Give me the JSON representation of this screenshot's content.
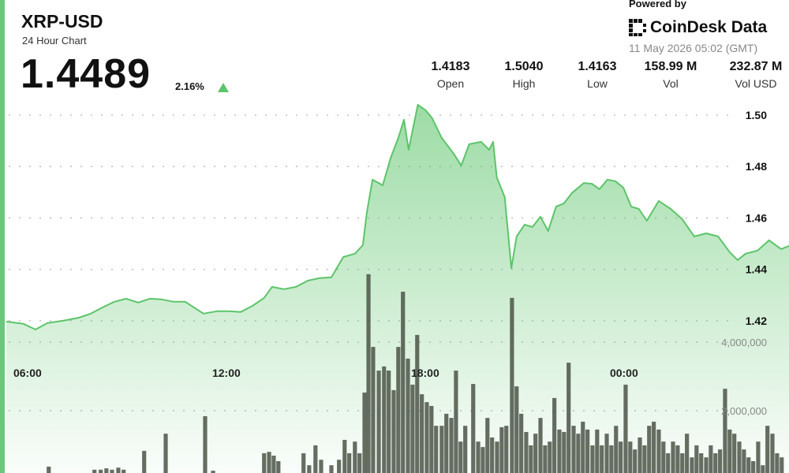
{
  "header": {
    "symbol": "XRP-USD",
    "subtitle": "24 Hour Chart",
    "price": "1.4489",
    "change": "2.16%",
    "powered_by": "Powered by",
    "brand": "CoinDesk Data",
    "timestamp": "11 May 2026 05:02 (GMT)",
    "stats": [
      {
        "value": "1.4183",
        "label": "Open"
      },
      {
        "value": "1.5040",
        "label": "High"
      },
      {
        "value": "1.4163",
        "label": "Low"
      },
      {
        "value": "158.99 M",
        "label": "Vol"
      },
      {
        "value": "232.87 M",
        "label": "Vol USD"
      }
    ]
  },
  "chart_data": [
    {
      "type": "area",
      "color": "#5cc46a",
      "grid": true,
      "xlim": [
        5.36,
        28.98
      ],
      "xticks": [
        {
          "value": 6,
          "label": "06:00"
        },
        {
          "value": 12,
          "label": "12:00"
        },
        {
          "value": 18,
          "label": "18:00"
        },
        {
          "value": 24,
          "label": "00:00"
        }
      ],
      "ylim": [
        1.3608,
        1.5141
      ],
      "yticks": [
        1.42,
        1.44,
        1.46,
        1.48,
        {
          "value": 1.5,
          "label": "1.50"
        }
      ],
      "x": [
        5.36,
        5.88,
        6.24,
        6.6,
        7.07,
        7.55,
        7.91,
        8.26,
        8.62,
        8.98,
        9.34,
        9.69,
        10.05,
        10.41,
        10.76,
        11.31,
        11.72,
        12.07,
        12.43,
        12.79,
        13.14,
        13.38,
        13.74,
        14.1,
        14.46,
        14.81,
        15.17,
        15.53,
        15.88,
        16.12,
        16.24,
        16.41,
        16.72,
        16.96,
        17.19,
        17.36,
        17.5,
        17.78,
        18.02,
        18.21,
        18.5,
        18.86,
        19.09,
        19.33,
        19.69,
        19.93,
        20.05,
        20.16,
        20.4,
        20.6,
        20.76,
        21.0,
        21.24,
        21.48,
        21.71,
        21.95,
        22.19,
        22.43,
        22.79,
        23.03,
        23.26,
        23.5,
        23.74,
        23.98,
        24.22,
        24.45,
        24.69,
        25.05,
        25.41,
        25.76,
        26.12,
        26.48,
        26.84,
        27.19,
        27.43,
        27.67,
        28.03,
        28.38,
        28.74,
        28.98
      ],
      "values": [
        1.4197,
        1.4188,
        1.4166,
        1.4191,
        1.42,
        1.4212,
        1.4228,
        1.4252,
        1.4274,
        1.4286,
        1.4271,
        1.4286,
        1.4283,
        1.4274,
        1.4274,
        1.4228,
        1.4237,
        1.4237,
        1.4234,
        1.4258,
        1.4289,
        1.4332,
        1.4323,
        1.4332,
        1.4356,
        1.4366,
        1.4369,
        1.4448,
        1.4461,
        1.4494,
        1.462,
        1.4749,
        1.4727,
        1.4834,
        1.4911,
        1.4982,
        1.4865,
        1.504,
        1.5018,
        1.4988,
        1.4911,
        1.485,
        1.4804,
        1.4887,
        1.4896,
        1.4865,
        1.4896,
        1.4758,
        1.4681,
        1.4405,
        1.4528,
        1.4574,
        1.4565,
        1.4605,
        1.4549,
        1.4644,
        1.4657,
        1.4697,
        1.4736,
        1.4733,
        1.4712,
        1.4749,
        1.4743,
        1.4718,
        1.4644,
        1.4635,
        1.4589,
        1.4666,
        1.4635,
        1.4595,
        1.4528,
        1.454,
        1.4528,
        1.4467,
        1.4436,
        1.4461,
        1.4473,
        1.4513,
        1.4479,
        1.4491
      ]
    },
    {
      "type": "bar",
      "color": "#4b5446",
      "grid": true,
      "xlim": [
        5.36,
        28.98
      ],
      "ylim": [
        0,
        6160000
      ],
      "yticks": [
        {
          "value": 2000000,
          "label": "2,000,000"
        },
        {
          "value": 4000000,
          "label": "4,000,000"
        }
      ],
      "x": [
        6.64,
        8.02,
        8.21,
        8.38,
        8.55,
        8.74,
        8.9,
        9.52,
        10.17,
        11.36,
        11.6,
        13.14,
        13.29,
        13.43,
        13.57,
        14.33,
        14.5,
        14.69,
        14.86,
        15.17,
        15.4,
        15.57,
        15.71,
        15.88,
        16.02,
        16.17,
        16.29,
        16.43,
        16.6,
        16.76,
        16.9,
        17.05,
        17.19,
        17.33,
        17.48,
        17.62,
        17.76,
        17.9,
        18.05,
        18.19,
        18.33,
        18.5,
        18.64,
        18.79,
        18.93,
        19.07,
        19.21,
        19.45,
        19.6,
        19.74,
        19.88,
        20.02,
        20.17,
        20.31,
        20.45,
        20.62,
        20.76,
        20.9,
        21.05,
        21.19,
        21.33,
        21.48,
        21.62,
        21.76,
        21.9,
        22.05,
        22.19,
        22.33,
        22.48,
        22.62,
        22.76,
        22.9,
        23.05,
        23.19,
        23.33,
        23.48,
        23.62,
        23.76,
        23.9,
        24.05,
        24.19,
        24.33,
        24.48,
        24.62,
        24.76,
        24.9,
        25.05,
        25.19,
        25.33,
        25.48,
        25.62,
        25.76,
        25.9,
        26.05,
        26.19,
        26.33,
        26.48,
        26.62,
        26.76,
        26.9,
        27.05,
        27.19,
        27.33,
        27.48,
        27.62,
        27.76,
        27.9,
        28.05,
        28.19,
        28.33,
        28.48,
        28.62,
        28.76
      ],
      "values": [
        370000,
        280000,
        280000,
        320000,
        280000,
        340000,
        280000,
        830000,
        1330000,
        1840000,
        250000,
        760000,
        800000,
        690000,
        530000,
        760000,
        410000,
        990000,
        570000,
        410000,
        570000,
        1150000,
        760000,
        1100000,
        760000,
        2530000,
        5980000,
        3860000,
        3170000,
        3290000,
        3170000,
        2600000,
        3860000,
        5470000,
        3520000,
        2760000,
        4210000,
        2480000,
        2250000,
        2140000,
        1560000,
        1560000,
        1910000,
        1790000,
        3170000,
        1100000,
        1560000,
        2780000,
        1100000,
        940000,
        1790000,
        1220000,
        1100000,
        1520000,
        1560000,
        5290000,
        2710000,
        1910000,
        1380000,
        990000,
        1330000,
        1790000,
        990000,
        1100000,
        2370000,
        1450000,
        1380000,
        3400000,
        1560000,
        1330000,
        1680000,
        1450000,
        990000,
        1450000,
        990000,
        1330000,
        990000,
        1560000,
        1100000,
        2760000,
        1100000,
        870000,
        1220000,
        990000,
        1560000,
        1680000,
        1450000,
        1100000,
        760000,
        1100000,
        990000,
        760000,
        1330000,
        640000,
        990000,
        760000,
        640000,
        990000,
        760000,
        870000,
        2640000,
        1450000,
        1330000,
        1100000,
        870000,
        640000,
        530000,
        1100000,
        410000,
        1560000,
        1330000,
        760000,
        640000
      ]
    }
  ]
}
